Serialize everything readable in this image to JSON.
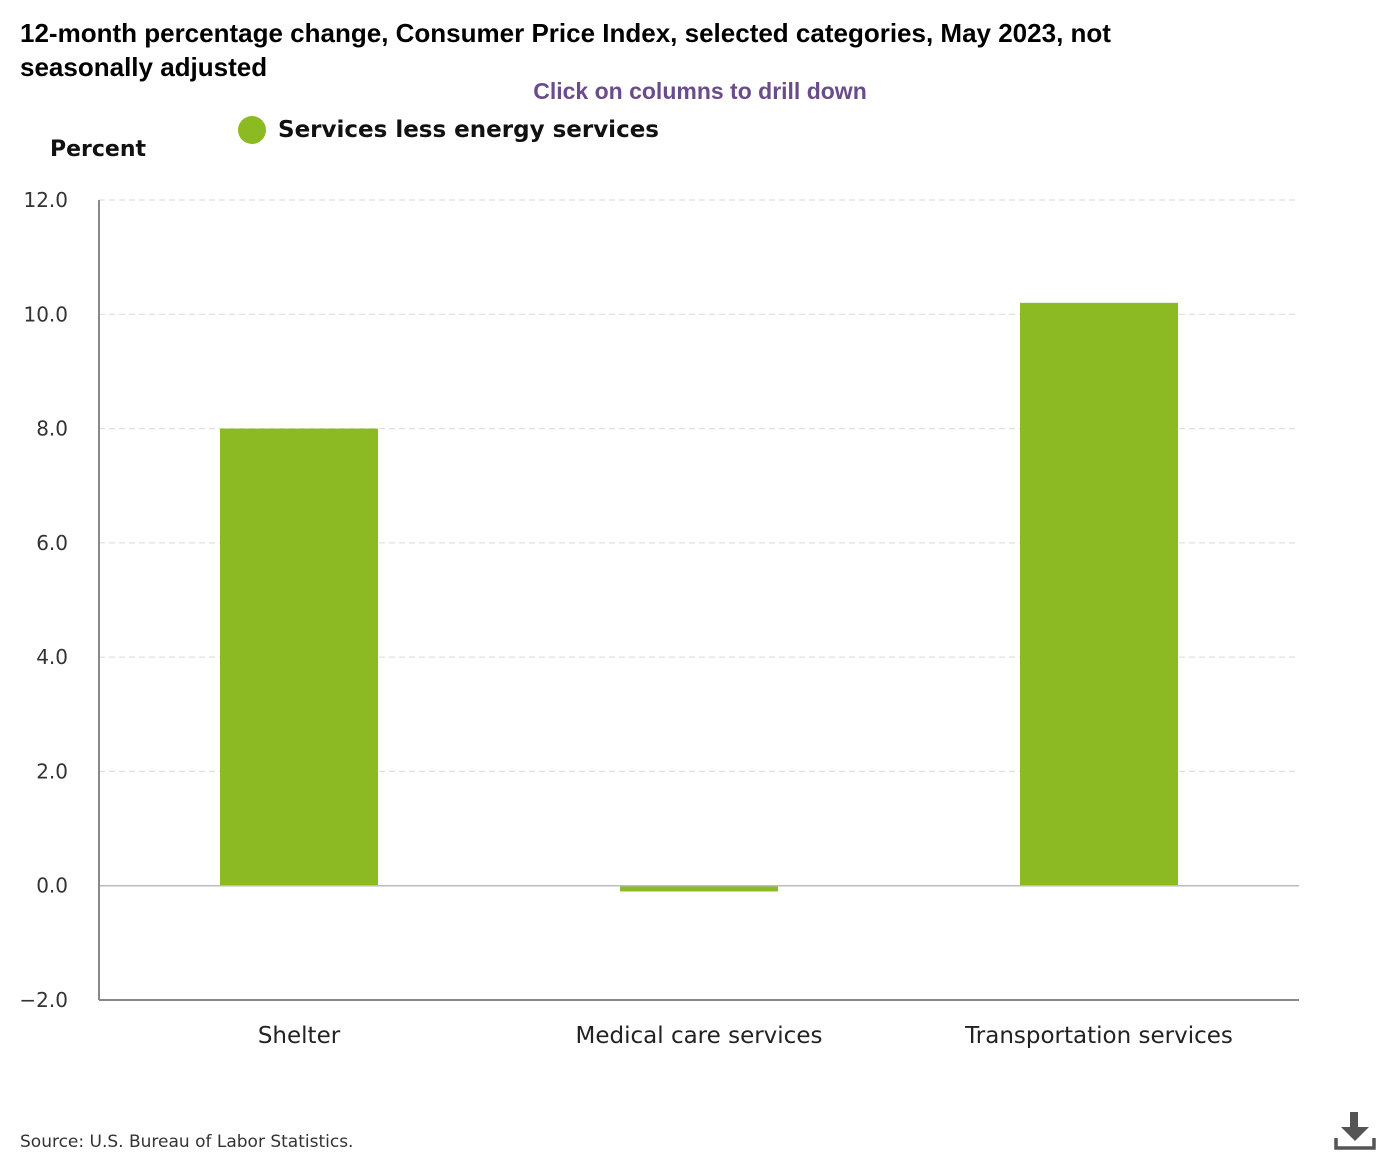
{
  "chart_data": {
    "type": "bar",
    "title": "12-month percentage change, Consumer Price Index, selected categories, May 2023, not seasonally adjusted",
    "subtitle": "Click on columns to drill down",
    "ylabel": "Percent",
    "xlabel": "",
    "categories": [
      "Shelter",
      "Medical care services",
      "Transportation services"
    ],
    "series": [
      {
        "name": "Services less energy services",
        "color": "#8bba22",
        "values": [
          8.0,
          -0.1,
          10.2
        ]
      }
    ],
    "ylim": [
      -2.0,
      12.0
    ],
    "yticks": [
      -2.0,
      0.0,
      2.0,
      4.0,
      6.0,
      8.0,
      10.0,
      12.0
    ],
    "ytick_labels": [
      "−2.0",
      "0.0",
      "2.0",
      "4.0",
      "6.0",
      "8.0",
      "10.0",
      "12.0"
    ],
    "grid": true,
    "legend_position": "top-left"
  },
  "source": "Source: U.S. Bureau of Labor Statistics.",
  "download": {
    "icon": "download-icon"
  },
  "colors": {
    "bar": "#8bba22",
    "grid": "#d9d9d9",
    "axis": "#888888",
    "zero_line": "#bbbbbb",
    "hint": "#6b4c8a"
  }
}
